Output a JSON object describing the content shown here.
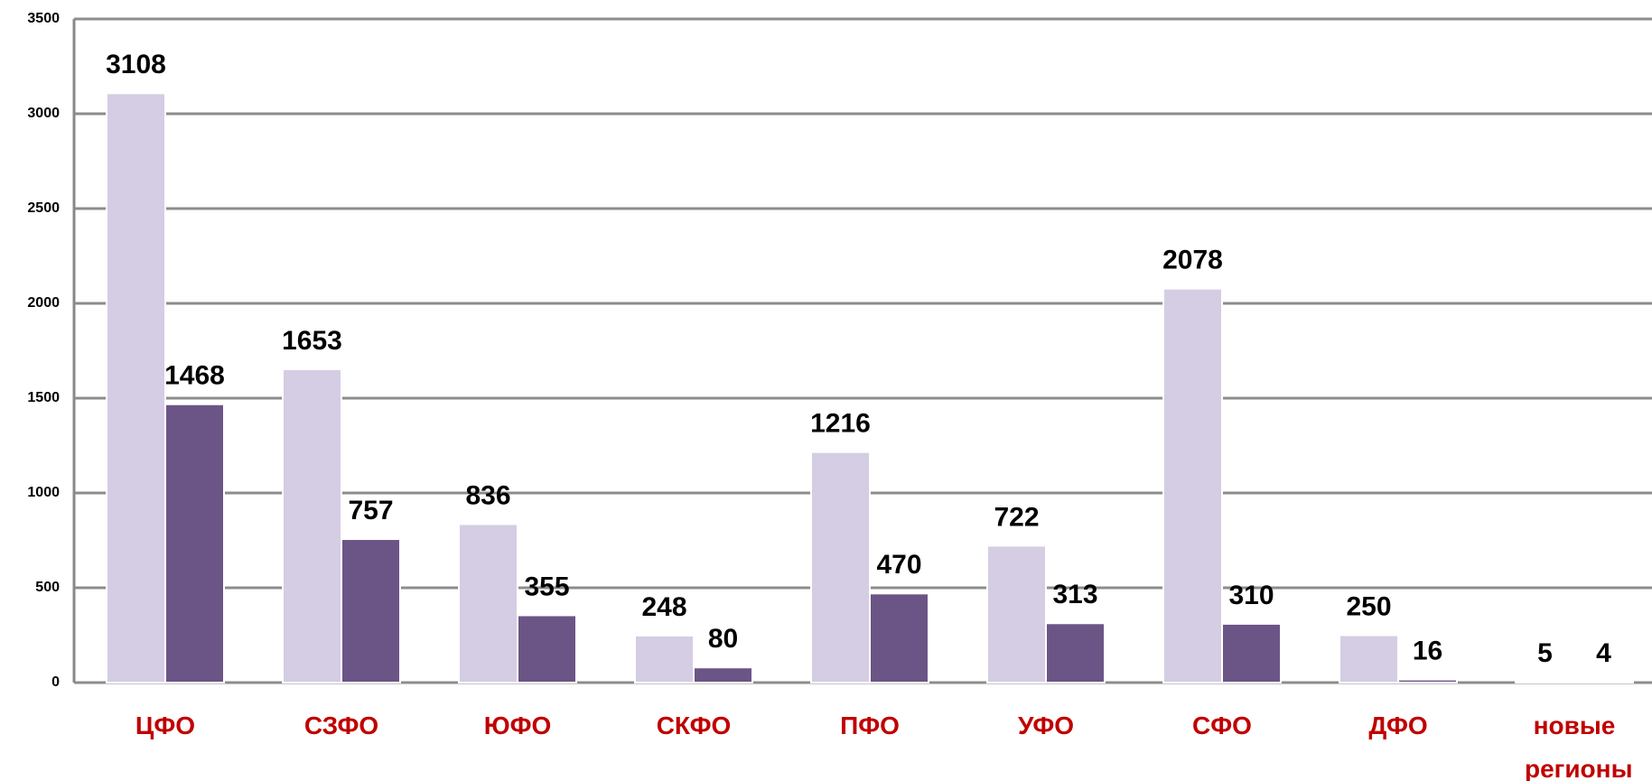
{
  "chart_data": {
    "type": "bar",
    "categories": [
      "ЦФО",
      "СЗФО",
      "ЮФО",
      "СКФО",
      "ПФО",
      "УФО",
      "СФО",
      "ДФО",
      "новые регионы"
    ],
    "series": [
      {
        "color": "#d4cde3",
        "values": [
          3108,
          1653,
          836,
          248,
          1216,
          722,
          2078,
          250,
          5
        ]
      },
      {
        "color": "#6b5586",
        "values": [
          1468,
          757,
          355,
          80,
          470,
          313,
          310,
          16,
          4
        ]
      }
    ],
    "ylim": [
      0,
      3500
    ],
    "yticks": [
      0,
      500,
      1000,
      1500,
      2000,
      2500,
      3000,
      3500
    ],
    "grid": true
  }
}
